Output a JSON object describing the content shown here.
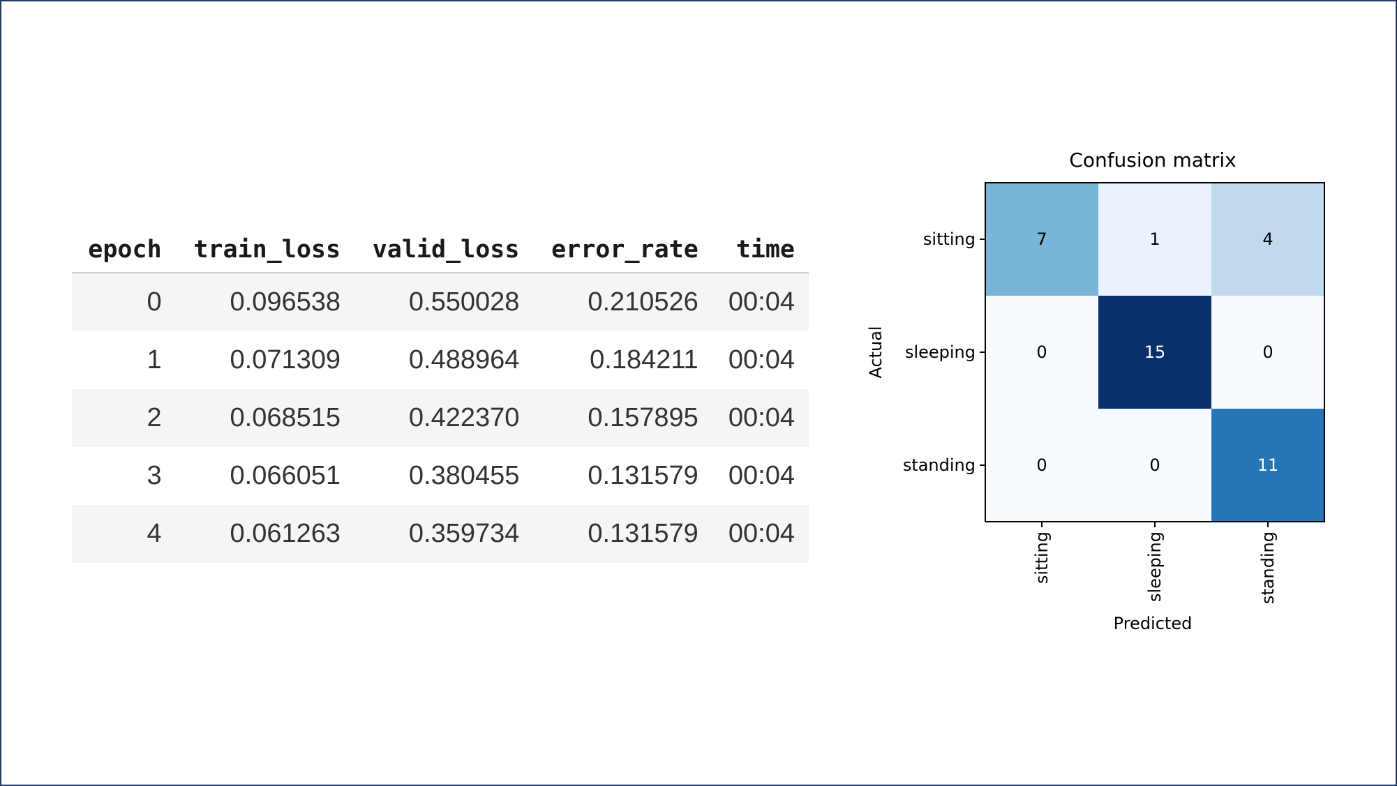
{
  "table": {
    "columns": [
      "epoch",
      "train_loss",
      "valid_loss",
      "error_rate",
      "time"
    ],
    "rows": [
      [
        "0",
        "0.096538",
        "0.550028",
        "0.210526",
        "00:04"
      ],
      [
        "1",
        "0.071309",
        "0.488964",
        "0.184211",
        "00:04"
      ],
      [
        "2",
        "0.068515",
        "0.422370",
        "0.157895",
        "00:04"
      ],
      [
        "3",
        "0.066051",
        "0.380455",
        "0.131579",
        "00:04"
      ],
      [
        "4",
        "0.061263",
        "0.359734",
        "0.131579",
        "00:04"
      ]
    ]
  },
  "chart_data": {
    "type": "heatmap",
    "title": "Confusion matrix",
    "xlabel": "Predicted",
    "ylabel": "Actual",
    "x_categories": [
      "sitting",
      "sleeping",
      "standing"
    ],
    "y_categories": [
      "sitting",
      "sleeping",
      "standing"
    ],
    "values": [
      [
        7,
        1,
        4
      ],
      [
        0,
        15,
        0
      ],
      [
        0,
        0,
        11
      ]
    ],
    "colormap": "Blues",
    "value_range": [
      0,
      15
    ],
    "grid": false
  }
}
